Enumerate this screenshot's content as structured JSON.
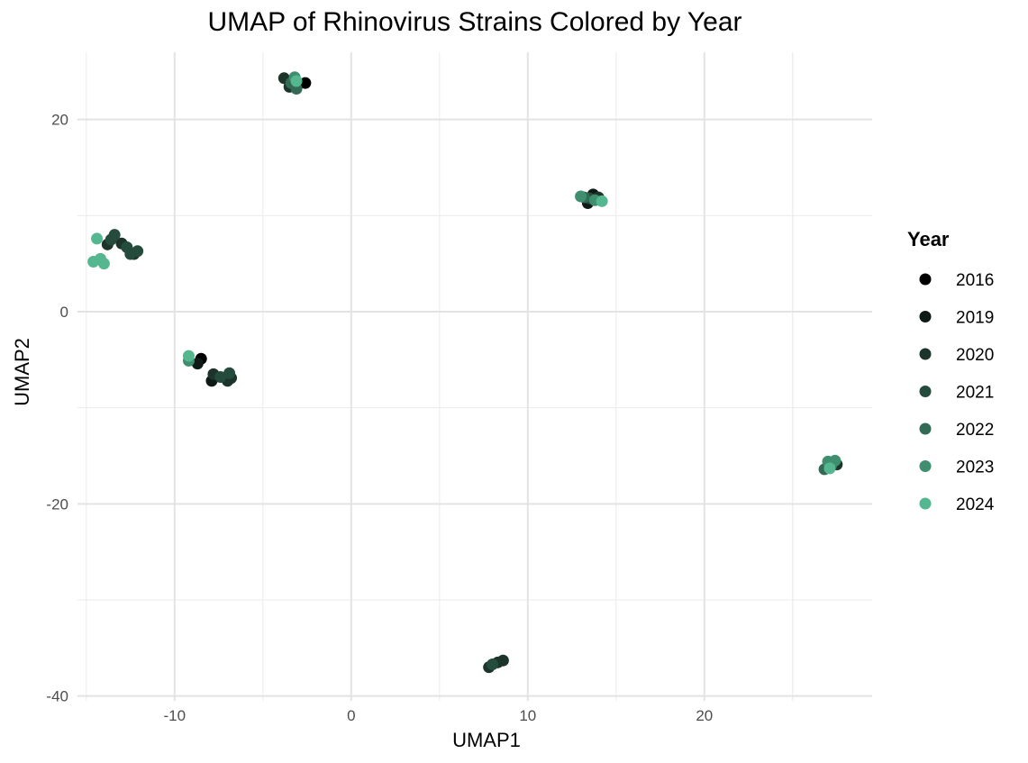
{
  "chart_data": {
    "type": "scatter",
    "title": "UMAP of Rhinovirus Strains Colored by Year",
    "xlabel": "UMAP1",
    "ylabel": "UMAP2",
    "xlim": [
      -15.5,
      29.5
    ],
    "ylim": [
      -40.5,
      27
    ],
    "x_ticks": [
      -10,
      0,
      10,
      20
    ],
    "y_ticks": [
      -40,
      -20,
      0,
      20
    ],
    "grid": true,
    "legend_title": "Year",
    "legend_position": "right",
    "series": [
      {
        "name": "2016",
        "color": "#000000",
        "points": [
          [
            -2.6,
            23.8
          ],
          [
            -8.5,
            -4.9
          ]
        ]
      },
      {
        "name": "2019",
        "color": "#0e1a15",
        "points": [
          [
            -3.2,
            23.5
          ],
          [
            -8.7,
            -5.4
          ],
          [
            -7.9,
            -7.2
          ],
          [
            13.7,
            12.2
          ],
          [
            13.4,
            11.3
          ]
        ]
      },
      {
        "name": "2020",
        "color": "#1c342a",
        "points": [
          [
            -3.8,
            24.3
          ],
          [
            -3.5,
            23.4
          ],
          [
            -13.8,
            7.0
          ],
          [
            -13.0,
            7.1
          ],
          [
            -12.3,
            6.0
          ],
          [
            -7.8,
            -6.5
          ],
          [
            -7.0,
            -7.2
          ],
          [
            -6.8,
            -6.9
          ],
          [
            7.8,
            -37.0
          ],
          [
            8.3,
            -36.5
          ],
          [
            8.6,
            -36.3
          ],
          [
            14.0,
            11.9
          ],
          [
            27.5,
            -15.9
          ]
        ]
      },
      {
        "name": "2021",
        "color": "#254b3d",
        "points": [
          [
            -13.6,
            7.5
          ],
          [
            -13.4,
            8.0
          ],
          [
            -12.7,
            6.7
          ],
          [
            -12.5,
            6.0
          ],
          [
            -12.1,
            6.3
          ],
          [
            -7.4,
            -6.8
          ],
          [
            -6.9,
            -6.4
          ],
          [
            8.0,
            -36.7
          ],
          [
            13.5,
            11.8
          ]
        ]
      },
      {
        "name": "2022",
        "color": "#326a55",
        "points": [
          [
            -3.1,
            23.2
          ],
          [
            -3.4,
            23.8
          ],
          [
            26.8,
            -16.4
          ],
          [
            27.2,
            -16.0
          ],
          [
            13.2,
            11.9
          ]
        ]
      },
      {
        "name": "2023",
        "color": "#3f8e6f",
        "points": [
          [
            -3.2,
            24.4
          ],
          [
            -9.2,
            -5.1
          ],
          [
            27.0,
            -15.6
          ],
          [
            27.4,
            -15.5
          ],
          [
            13.0,
            12.0
          ],
          [
            13.8,
            11.6
          ]
        ]
      },
      {
        "name": "2024",
        "color": "#54b78f",
        "points": [
          [
            -14.4,
            7.6
          ],
          [
            -14.6,
            5.2
          ],
          [
            -14.2,
            5.5
          ],
          [
            -14.0,
            5.0
          ],
          [
            -9.2,
            -4.6
          ],
          [
            -3.1,
            24.0
          ],
          [
            14.2,
            11.5
          ],
          [
            27.1,
            -16.3
          ]
        ]
      }
    ]
  }
}
